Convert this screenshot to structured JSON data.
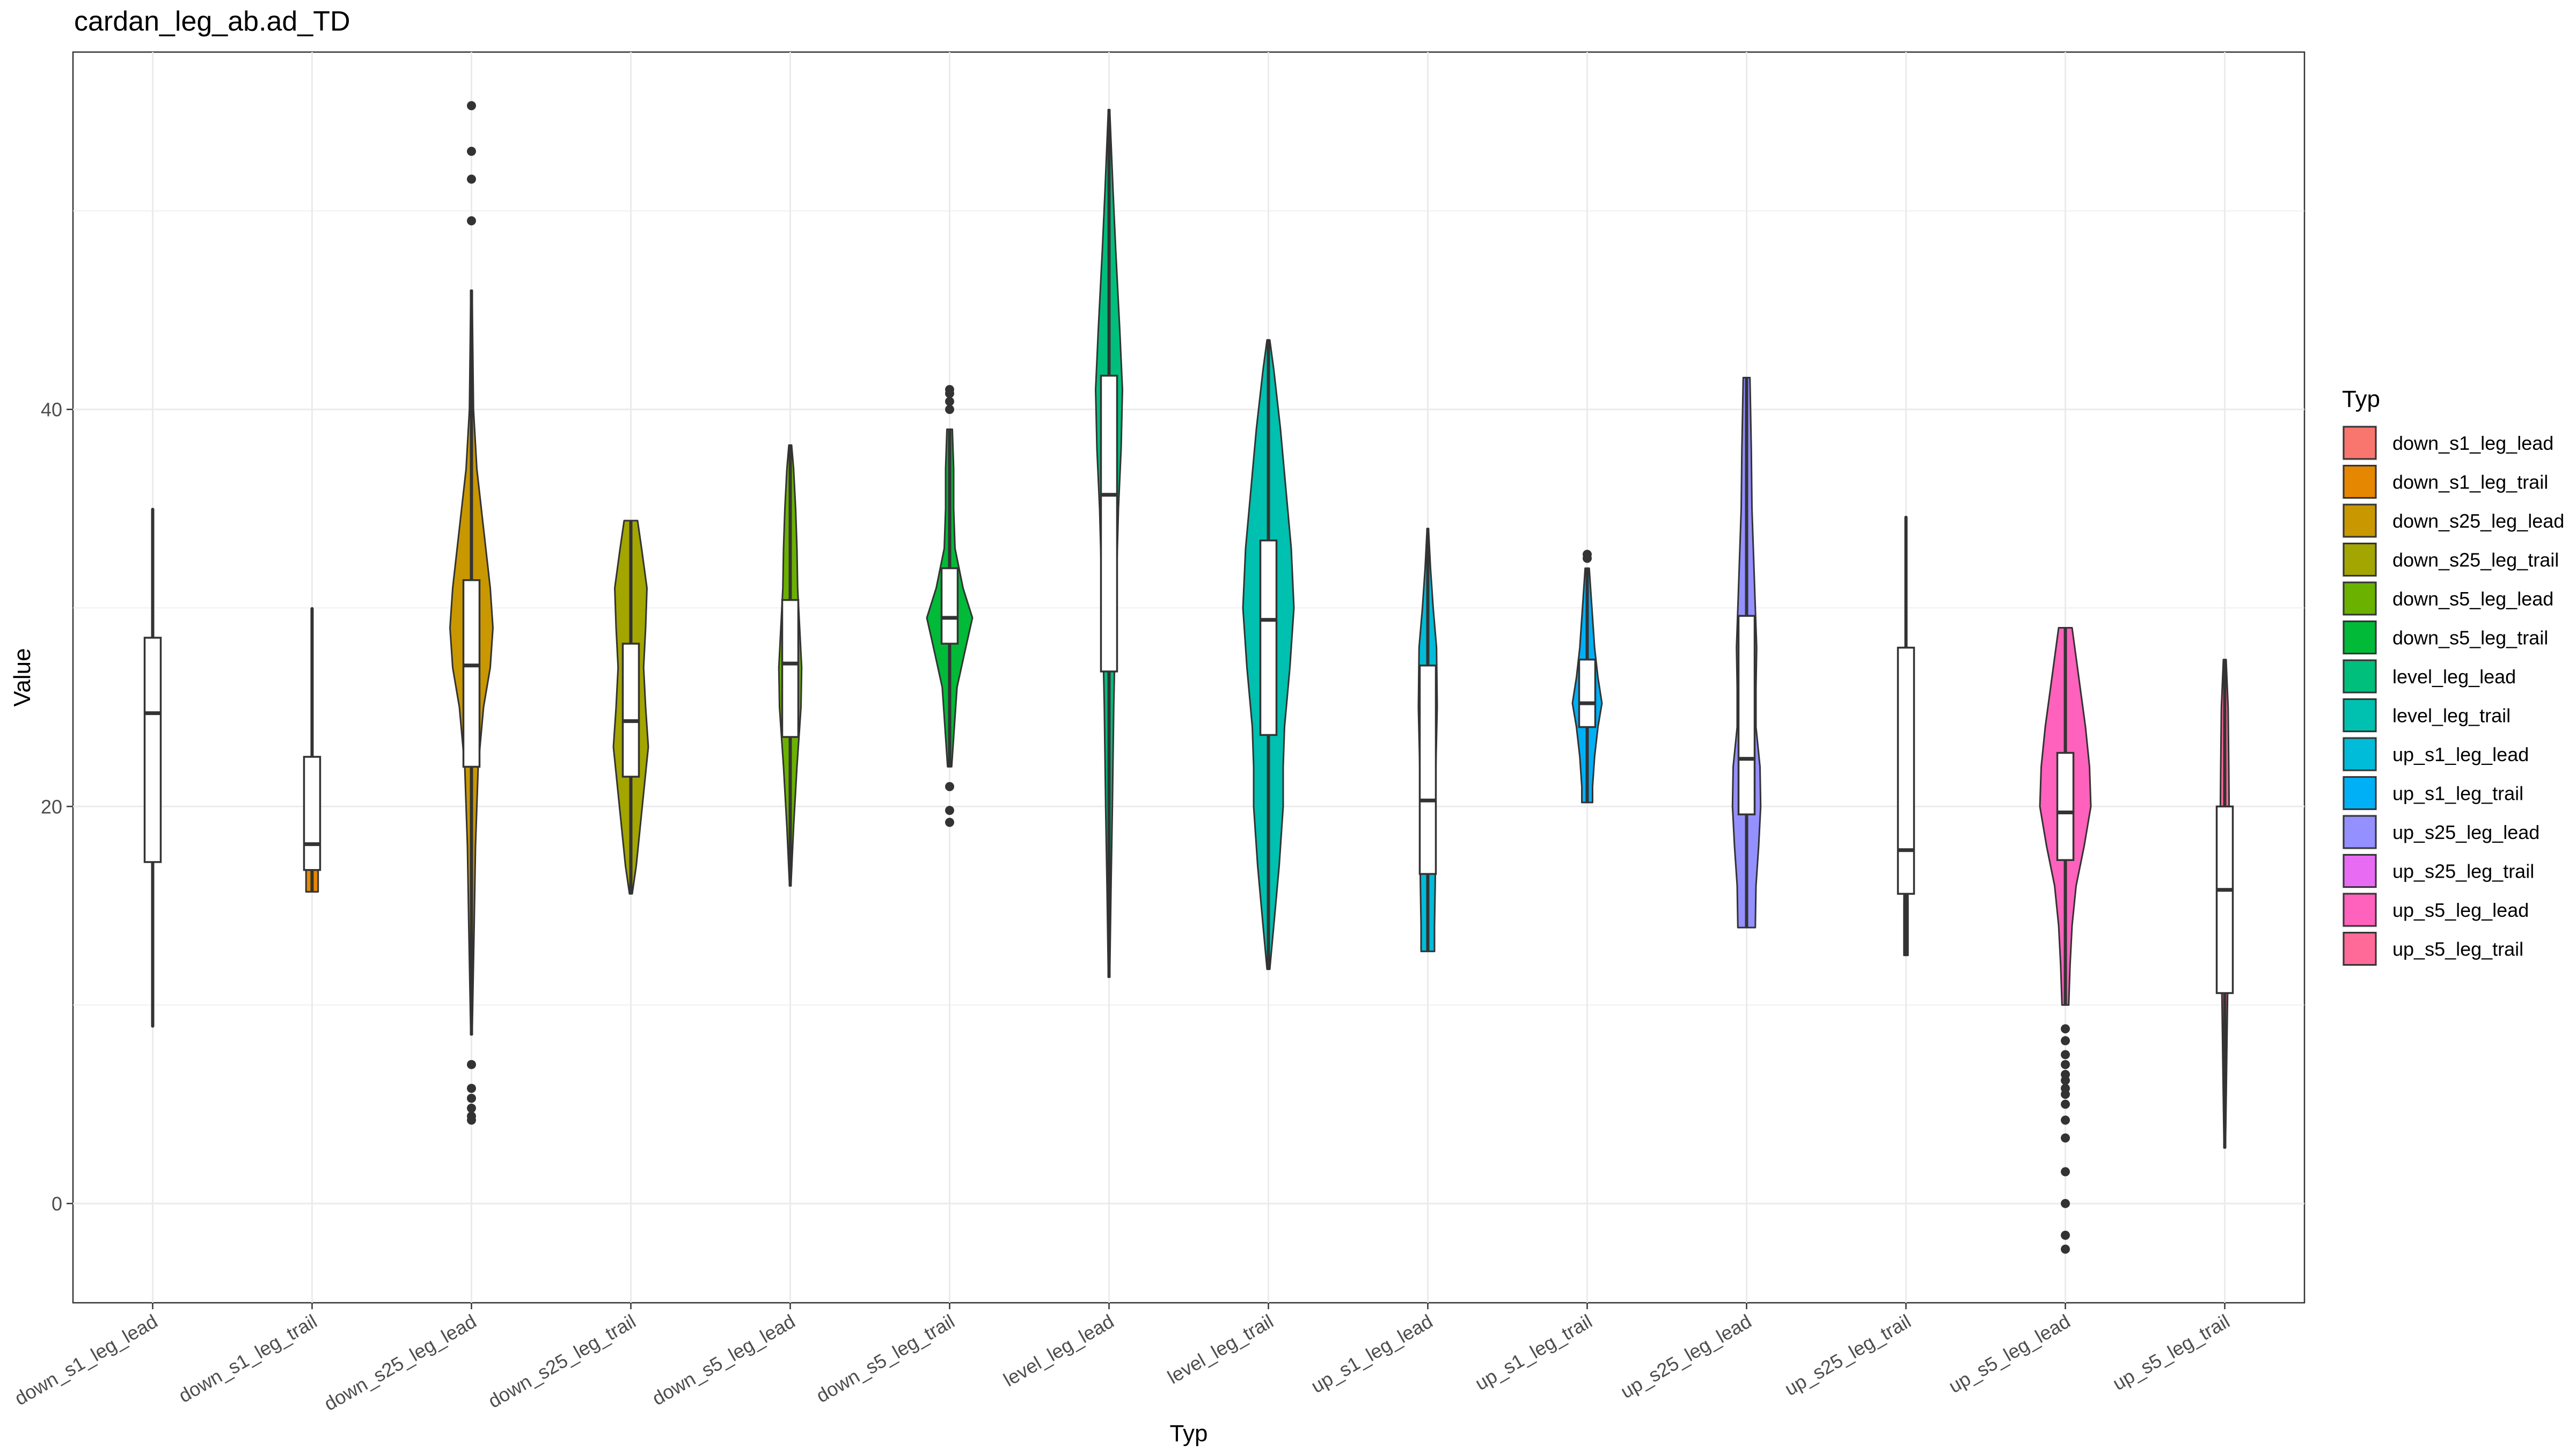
{
  "chart_data": {
    "type": "violin",
    "title": "cardan_leg_ab.ad_TD",
    "xlabel": "Typ",
    "ylabel": "Value",
    "ylim": [
      -5,
      58
    ],
    "yticks": [
      0,
      20,
      40
    ],
    "grid": true,
    "legend_position": "right",
    "legend_title": "Typ",
    "categories": [
      "down_s1_leg_lead",
      "down_s1_leg_trail",
      "down_s25_leg_lead",
      "down_s25_leg_trail",
      "down_s5_leg_lead",
      "down_s5_leg_trail",
      "level_leg_lead",
      "level_leg_trail",
      "up_s1_leg_lead",
      "up_s1_leg_trail",
      "up_s25_leg_lead",
      "up_s25_leg_trail",
      "up_s5_leg_lead",
      "up_s5_leg_trail"
    ],
    "series": [
      {
        "name": "down_s1_leg_lead",
        "color": "#F8766D",
        "min": 8.9,
        "q1": 17.2,
        "median": 24.7,
        "q3": 28.5,
        "max": 35.0,
        "violin": [
          [
            8.9,
            0.3
          ],
          [
            15,
            0.4
          ],
          [
            20,
            0.5
          ],
          [
            25,
            0.6
          ],
          [
            30,
            0.5
          ],
          [
            35,
            0.3
          ]
        ],
        "outliers": []
      },
      {
        "name": "down_s1_leg_trail",
        "color": "#E58700",
        "min": 15.7,
        "q1": 16.8,
        "median": 18.1,
        "q3": 22.5,
        "max": 30.0,
        "violin": [
          [
            15.7,
            4.5
          ],
          [
            16.8,
            4.5
          ],
          [
            17,
            0.6
          ],
          [
            20,
            0.6
          ],
          [
            25,
            0.4
          ],
          [
            30,
            0.2
          ]
        ],
        "outliers": []
      },
      {
        "name": "down_s25_leg_lead",
        "color": "#C99800",
        "min": 8.5,
        "q1": 22.0,
        "median": 27.1,
        "q3": 31.4,
        "max": 46.0,
        "violin": [
          [
            8.5,
            0.5
          ],
          [
            14,
            2
          ],
          [
            18,
            3
          ],
          [
            22,
            5
          ],
          [
            25,
            9
          ],
          [
            27,
            14
          ],
          [
            29,
            16
          ],
          [
            31,
            14
          ],
          [
            34,
            9
          ],
          [
            37,
            4
          ],
          [
            40,
            1.5
          ],
          [
            44,
            0.8
          ],
          [
            46,
            0.5
          ]
        ],
        "outliers": [
          4.2,
          4.4,
          4.8,
          5.3,
          5.8,
          7.0,
          49.5,
          51.6,
          53.0,
          55.3
        ]
      },
      {
        "name": "down_s25_leg_trail",
        "color": "#A3A500",
        "min": 15.6,
        "q1": 21.5,
        "median": 24.3,
        "q3": 28.2,
        "max": 34.4,
        "violin": [
          [
            15.6,
            1
          ],
          [
            17,
            4
          ],
          [
            19,
            7
          ],
          [
            21,
            10
          ],
          [
            23,
            13
          ],
          [
            25,
            11
          ],
          [
            27,
            9.5
          ],
          [
            29,
            11
          ],
          [
            31,
            12
          ],
          [
            33,
            8
          ],
          [
            34.4,
            5
          ]
        ],
        "outliers": []
      },
      {
        "name": "down_s5_leg_lead",
        "color": "#6BB100",
        "min": 16.0,
        "q1": 23.5,
        "median": 27.2,
        "q3": 30.4,
        "max": 38.2,
        "violin": [
          [
            16,
            0.5
          ],
          [
            19,
            2.5
          ],
          [
            22,
            5
          ],
          [
            25,
            8
          ],
          [
            27,
            8.5
          ],
          [
            29,
            7
          ],
          [
            31,
            5.5
          ],
          [
            33,
            5
          ],
          [
            35,
            4
          ],
          [
            37,
            2.5
          ],
          [
            38.2,
            1
          ]
        ],
        "outliers": []
      },
      {
        "name": "down_s5_leg_trail",
        "color": "#00BA38",
        "min": 22.0,
        "q1": 28.2,
        "median": 29.5,
        "q3": 32.0,
        "max": 39.0,
        "violin": [
          [
            22,
            1.5
          ],
          [
            24,
            3.5
          ],
          [
            26,
            5.5
          ],
          [
            28,
            12
          ],
          [
            29.5,
            17
          ],
          [
            31,
            10
          ],
          [
            33,
            4
          ],
          [
            35,
            3
          ],
          [
            37,
            3
          ],
          [
            39,
            2
          ]
        ],
        "outliers": [
          19.2,
          19.8,
          21.0,
          40.0,
          40.4,
          40.8,
          41.0
        ]
      },
      {
        "name": "level_leg_lead",
        "color": "#00BF7D",
        "min": 11.4,
        "q1": 26.8,
        "median": 35.7,
        "q3": 41.7,
        "max": 55.1,
        "violin": [
          [
            11.4,
            0.5
          ],
          [
            16,
            1.5
          ],
          [
            20,
            2.5
          ],
          [
            25,
            3.5
          ],
          [
            30,
            5
          ],
          [
            35,
            7
          ],
          [
            38,
            9
          ],
          [
            41,
            10
          ],
          [
            44,
            8
          ],
          [
            48,
            5
          ],
          [
            51,
            3
          ],
          [
            55.1,
            0.5
          ]
        ],
        "outliers": []
      },
      {
        "name": "level_leg_trail",
        "color": "#00C0AF",
        "min": 11.8,
        "q1": 23.6,
        "median": 29.4,
        "q3": 33.4,
        "max": 43.5,
        "violin": [
          [
            11.8,
            1
          ],
          [
            14,
            4
          ],
          [
            17,
            8
          ],
          [
            20,
            11
          ],
          [
            22,
            11
          ],
          [
            24,
            12
          ],
          [
            27,
            16
          ],
          [
            30,
            19
          ],
          [
            33,
            17
          ],
          [
            36,
            13
          ],
          [
            39,
            9
          ],
          [
            42,
            4
          ],
          [
            43.5,
            1
          ]
        ],
        "outliers": []
      },
      {
        "name": "up_s1_leg_lead",
        "color": "#00BCD8",
        "min": 12.7,
        "q1": 16.6,
        "median": 20.3,
        "q3": 27.1,
        "max": 34.0,
        "violin": [
          [
            12.7,
            5
          ],
          [
            14,
            5
          ],
          [
            16,
            5.5
          ],
          [
            19,
            6
          ],
          [
            22,
            6
          ],
          [
            25,
            7
          ],
          [
            28,
            6.5
          ],
          [
            30,
            4
          ],
          [
            32,
            2
          ],
          [
            34,
            0.5
          ]
        ],
        "outliers": []
      },
      {
        "name": "up_s1_leg_trail",
        "color": "#00B0F6",
        "min": 20.2,
        "q1": 24.0,
        "median": 25.2,
        "q3": 27.4,
        "max": 32.0,
        "violin": [
          [
            20.2,
            4
          ],
          [
            21,
            4
          ],
          [
            22.5,
            5.5
          ],
          [
            24,
            8
          ],
          [
            25.2,
            11
          ],
          [
            26.5,
            8
          ],
          [
            28,
            5.5
          ],
          [
            30,
            3.5
          ],
          [
            32,
            1.5
          ]
        ],
        "outliers": [
          32.5,
          32.7
        ]
      },
      {
        "name": "up_s25_leg_lead",
        "color": "#9590FF",
        "min": 13.9,
        "q1": 19.6,
        "median": 22.4,
        "q3": 29.6,
        "max": 41.6,
        "violin": [
          [
            13.9,
            6.5
          ],
          [
            16,
            7
          ],
          [
            18,
            9
          ],
          [
            20,
            10.5
          ],
          [
            22,
            10
          ],
          [
            24,
            7
          ],
          [
            26,
            7
          ],
          [
            28,
            7.5
          ],
          [
            30,
            6.5
          ],
          [
            32,
            5.5
          ],
          [
            35,
            4
          ],
          [
            38,
            3.5
          ],
          [
            41.6,
            2.5
          ]
        ],
        "outliers": []
      },
      {
        "name": "up_s25_leg_trail",
        "color": "#E76BF3",
        "min": 12.5,
        "q1": 15.6,
        "median": 17.8,
        "q3": 28.0,
        "max": 34.6,
        "violin": [
          [
            12.5,
            1.5
          ],
          [
            15,
            1.5
          ],
          [
            18,
            1.2
          ],
          [
            22,
            0.9
          ],
          [
            26,
            0.6
          ],
          [
            30,
            0.5
          ],
          [
            34.6,
            0.3
          ]
        ],
        "outliers": []
      },
      {
        "name": "up_s5_leg_lead",
        "color": "#FF62BC",
        "min": 10.0,
        "q1": 17.3,
        "median": 19.7,
        "q3": 22.7,
        "max": 29.0,
        "violin": [
          [
            10,
            2.5
          ],
          [
            12,
            3.5
          ],
          [
            14,
            5
          ],
          [
            16,
            8
          ],
          [
            18,
            14
          ],
          [
            20,
            19
          ],
          [
            22,
            18
          ],
          [
            24,
            15
          ],
          [
            26,
            11
          ],
          [
            28,
            7
          ],
          [
            29,
            5
          ]
        ],
        "outliers": [
          -2.3,
          -1.6,
          0,
          1.6,
          3.3,
          4.2,
          5.0,
          5.5,
          5.8,
          6.2,
          6.5,
          7.0,
          7.5,
          8.2,
          8.8
        ]
      },
      {
        "name": "up_s5_leg_trail",
        "color": "#FF6A98",
        "min": 2.8,
        "q1": 10.6,
        "median": 15.8,
        "q3": 20.0,
        "max": 27.4,
        "violin": [
          [
            2.8,
            0.5
          ],
          [
            6,
            1.2
          ],
          [
            10,
            2
          ],
          [
            14,
            3
          ],
          [
            18,
            3.5
          ],
          [
            22,
            3
          ],
          [
            25,
            2.5
          ],
          [
            27.4,
            1
          ]
        ],
        "outliers": []
      }
    ]
  }
}
